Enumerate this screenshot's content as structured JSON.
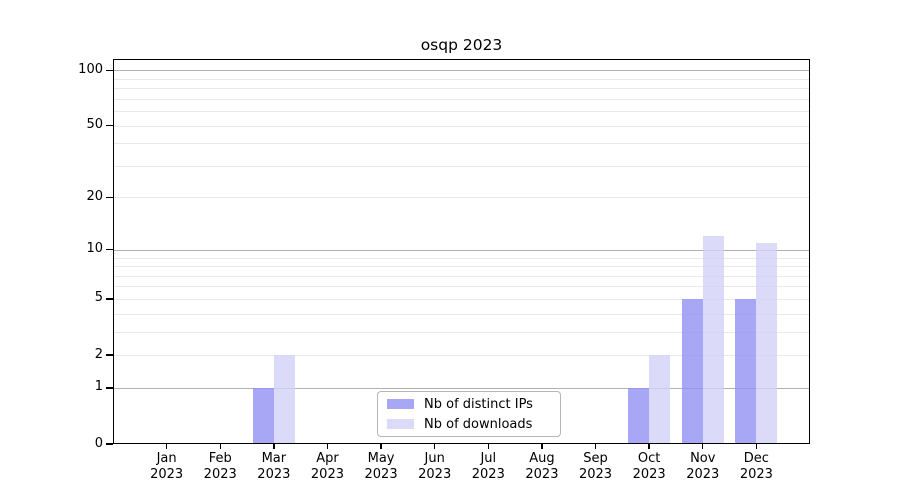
{
  "title": "osqp 2023",
  "legend": {
    "position": "lower center",
    "items": [
      {
        "label": "Nb of distinct IPs"
      },
      {
        "label": "Nb of downloads"
      }
    ]
  },
  "chart_data": {
    "type": "bar",
    "title": "osqp 2023",
    "categories": [
      "Jan 2023",
      "Feb 2023",
      "Mar 2023",
      "Apr 2023",
      "May 2023",
      "Jun 2023",
      "Jul 2023",
      "Aug 2023",
      "Sep 2023",
      "Oct 2023",
      "Nov 2023",
      "Dec 2023"
    ],
    "series": [
      {
        "name": "Nb of distinct IPs",
        "color": "#9191f4",
        "alpha": 0.8,
        "values": [
          0,
          0,
          1,
          0,
          0,
          0,
          0,
          0,
          0,
          1,
          5,
          5
        ]
      },
      {
        "name": "Nb of downloads",
        "color": "#d2d2f7",
        "alpha": 0.8,
        "values": [
          0,
          0,
          2,
          0,
          0,
          0,
          0,
          0,
          0,
          2,
          12,
          11
        ]
      }
    ],
    "xlabel": "",
    "ylabel": "",
    "yscale": "log1p",
    "ylim": [
      0,
      115
    ],
    "yticks": [
      0,
      1,
      2,
      5,
      10,
      20,
      50,
      100
    ],
    "major_gridlines": [
      1,
      10,
      100
    ],
    "minor_gridlines": [
      2,
      3,
      4,
      5,
      6,
      7,
      8,
      9,
      20,
      30,
      40,
      50,
      60,
      70,
      80,
      90
    ],
    "grid": true,
    "legend_position": "lower center",
    "colors": {
      "major_grid": "#b0b0b0",
      "minor_grid": "#e9e9e9",
      "spine": "#000000",
      "background": "#ffffff",
      "text": "#000000"
    }
  }
}
